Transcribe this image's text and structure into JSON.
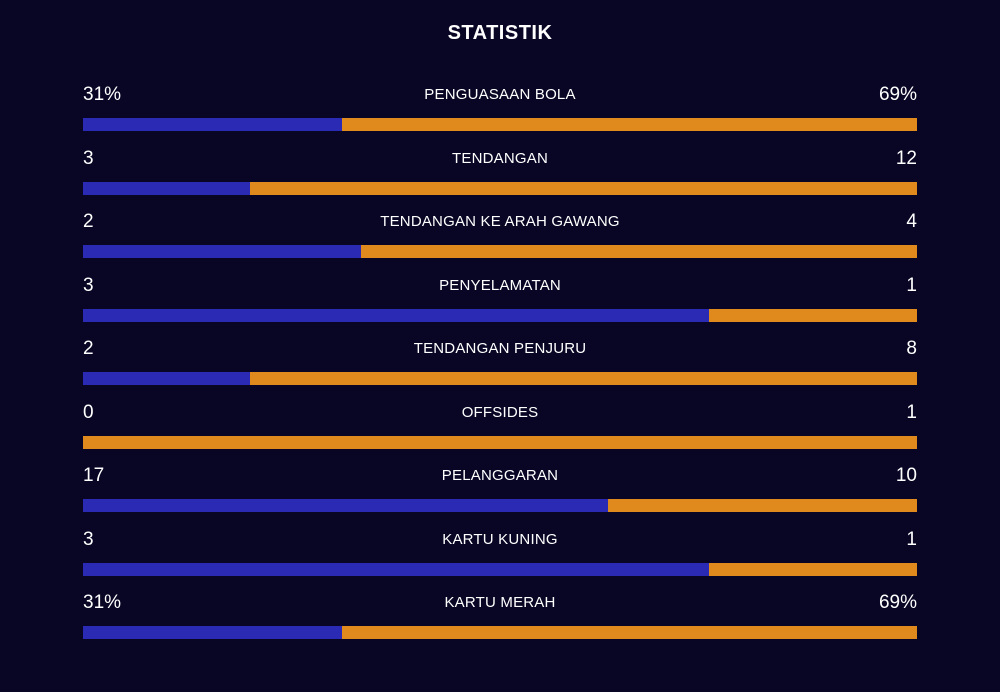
{
  "title": "STATISTIK",
  "colors": {
    "background": "#080624",
    "home": "#2b2ab4",
    "away": "#e08a1e"
  },
  "stats": [
    {
      "label": "PENGUASAAN BOLA",
      "home": "31%",
      "away": "69%",
      "home_share": 0.31
    },
    {
      "label": "TENDANGAN",
      "home": "3",
      "away": "12",
      "home_share": 0.2
    },
    {
      "label": "TENDANGAN KE ARAH GAWANG",
      "home": "2",
      "away": "4",
      "home_share": 0.3333
    },
    {
      "label": "PENYELAMATAN",
      "home": "3",
      "away": "1",
      "home_share": 0.75
    },
    {
      "label": "TENDANGAN PENJURU",
      "home": "2",
      "away": "8",
      "home_share": 0.2
    },
    {
      "label": "OFFSIDES",
      "home": "0",
      "away": "1",
      "home_share": 0
    },
    {
      "label": "PELANGGARAN",
      "home": "17",
      "away": "10",
      "home_share": 0.6296
    },
    {
      "label": "KARTU KUNING",
      "home": "3",
      "away": "1",
      "home_share": 0.75
    },
    {
      "label": "KARTU MERAH",
      "home": "31%",
      "away": "69%",
      "home_share": 0.31
    }
  ]
}
